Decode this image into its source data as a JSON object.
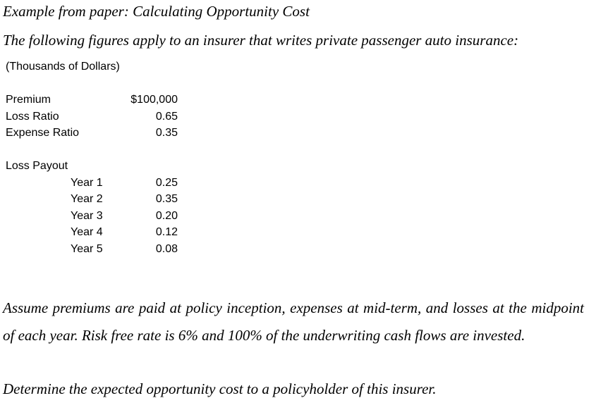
{
  "heading": "Example from paper: Calculating Opportunity Cost",
  "intro": "The following figures apply to an insurer that writes private passenger auto insurance:",
  "units": "(Thousands of Dollars)",
  "figures": [
    {
      "label": "Premium",
      "value": "$100,000"
    },
    {
      "label": "Loss Ratio",
      "value": "0.65"
    },
    {
      "label": "Expense Ratio",
      "value": "0.35"
    }
  ],
  "loss_payout": {
    "label": "Loss Payout",
    "years": [
      {
        "label": "Year 1",
        "value": "0.25"
      },
      {
        "label": "Year 2",
        "value": "0.35"
      },
      {
        "label": "Year 3",
        "value": "0.20"
      },
      {
        "label": "Year 4",
        "value": "0.12"
      },
      {
        "label": "Year 5",
        "value": "0.08"
      }
    ]
  },
  "assumption": "Assume premiums are paid at policy inception, expenses at mid-term, and losses at the midpoint of each year. Risk free rate is 6% and 100% of the underwriting cash flows are invested.",
  "question": "Determine the expected opportunity cost to a policyholder of this insurer."
}
